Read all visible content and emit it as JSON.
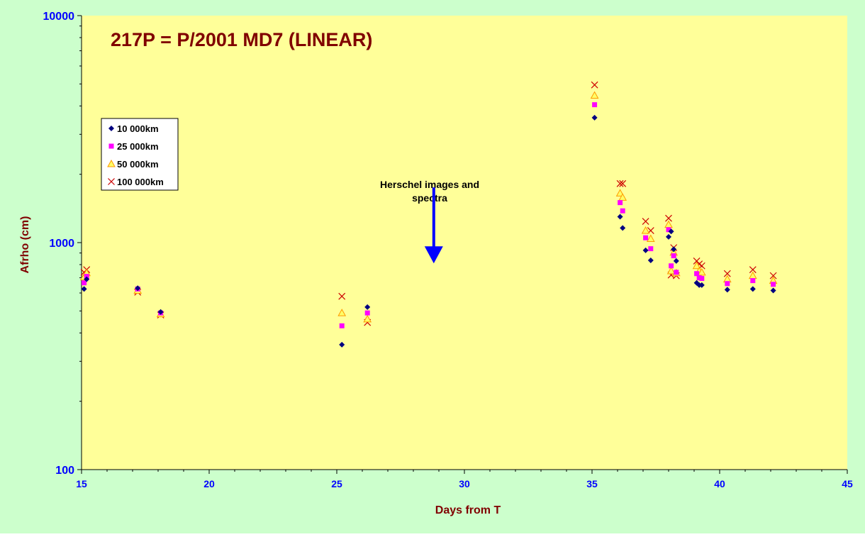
{
  "chart_data": {
    "type": "scatter",
    "title": "217P = P/2001 MD7 (LINEAR)",
    "xlabel": "Days from T",
    "ylabel": "Afrho (cm)",
    "xlim": [
      15,
      45
    ],
    "ylim": [
      100,
      10000
    ],
    "y_scale": "log",
    "x_ticks": [
      15,
      20,
      25,
      30,
      35,
      40,
      45
    ],
    "y_ticks": [
      100,
      1000,
      10000
    ],
    "grid": false,
    "legend_position": "upper-left",
    "annotation": {
      "text_lines": [
        "Herschel images and",
        "spectra"
      ],
      "arrow_x": 28.8,
      "arrow_y_top": 1750,
      "arrow_y_bottom": 810
    },
    "colors": {
      "outer_background": "#ccffcc",
      "plot_background": "#ffff99",
      "title": "#800000",
      "axis_label": "#800000",
      "tick_label": "#0000ff",
      "arrow": "#0000ff"
    },
    "series": [
      {
        "name": "10 000km",
        "marker": "diamond",
        "color": "#000080",
        "points": [
          [
            15.1,
            625
          ],
          [
            15.2,
            690
          ],
          [
            17.2,
            630
          ],
          [
            18.1,
            495
          ],
          [
            25.2,
            355
          ],
          [
            26.2,
            520
          ],
          [
            35.1,
            3550
          ],
          [
            36.1,
            1300
          ],
          [
            36.2,
            1160
          ],
          [
            37.1,
            925
          ],
          [
            37.3,
            835
          ],
          [
            38.0,
            1060
          ],
          [
            38.1,
            1120
          ],
          [
            38.2,
            935
          ],
          [
            38.3,
            830
          ],
          [
            39.1,
            665
          ],
          [
            39.2,
            650
          ],
          [
            39.3,
            650
          ],
          [
            40.3,
            620
          ],
          [
            41.3,
            625
          ],
          [
            42.1,
            615
          ]
        ]
      },
      {
        "name": "25 000km",
        "marker": "square",
        "color": "#ff00ff",
        "points": [
          [
            15.1,
            665
          ],
          [
            15.2,
            710
          ],
          [
            17.2,
            625
          ],
          [
            18.1,
            490
          ],
          [
            25.2,
            430
          ],
          [
            26.2,
            490
          ],
          [
            35.1,
            4050
          ],
          [
            36.1,
            1500
          ],
          [
            36.2,
            1380
          ],
          [
            37.1,
            1050
          ],
          [
            37.3,
            940
          ],
          [
            38.0,
            1140
          ],
          [
            38.1,
            790
          ],
          [
            38.2,
            875
          ],
          [
            38.3,
            740
          ],
          [
            39.1,
            730
          ],
          [
            39.2,
            700
          ],
          [
            39.3,
            695
          ],
          [
            40.3,
            660
          ],
          [
            41.3,
            680
          ],
          [
            42.1,
            655
          ]
        ]
      },
      {
        "name": "50 000km",
        "marker": "triangle",
        "color": "#ff9900",
        "points": [
          [
            15.1,
            705
          ],
          [
            15.2,
            735
          ],
          [
            17.2,
            615
          ],
          [
            18.1,
            485
          ],
          [
            25.2,
            490
          ],
          [
            26.2,
            460
          ],
          [
            35.1,
            4450
          ],
          [
            36.1,
            1650
          ],
          [
            36.2,
            1580
          ],
          [
            37.1,
            1130
          ],
          [
            37.3,
            1040
          ],
          [
            38.0,
            1200
          ],
          [
            38.1,
            750
          ],
          [
            38.2,
            905
          ],
          [
            38.3,
            735
          ],
          [
            39.1,
            790
          ],
          [
            39.2,
            750
          ],
          [
            39.3,
            740
          ],
          [
            40.3,
            690
          ],
          [
            41.3,
            715
          ],
          [
            42.1,
            680
          ]
        ]
      },
      {
        "name": "100 000km",
        "marker": "cross",
        "color": "#cc0000",
        "points": [
          [
            15.1,
            740
          ],
          [
            15.2,
            760
          ],
          [
            17.2,
            605
          ],
          [
            18.1,
            480
          ],
          [
            25.2,
            580
          ],
          [
            26.2,
            445
          ],
          [
            35.1,
            4950
          ],
          [
            36.1,
            1820
          ],
          [
            36.2,
            1820
          ],
          [
            37.1,
            1240
          ],
          [
            37.3,
            1130
          ],
          [
            38.0,
            1280
          ],
          [
            38.1,
            720
          ],
          [
            38.2,
            950
          ],
          [
            38.3,
            715
          ],
          [
            39.1,
            830
          ],
          [
            39.2,
            805
          ],
          [
            39.3,
            790
          ],
          [
            40.3,
            730
          ],
          [
            41.3,
            760
          ],
          [
            42.1,
            715
          ]
        ]
      }
    ]
  }
}
